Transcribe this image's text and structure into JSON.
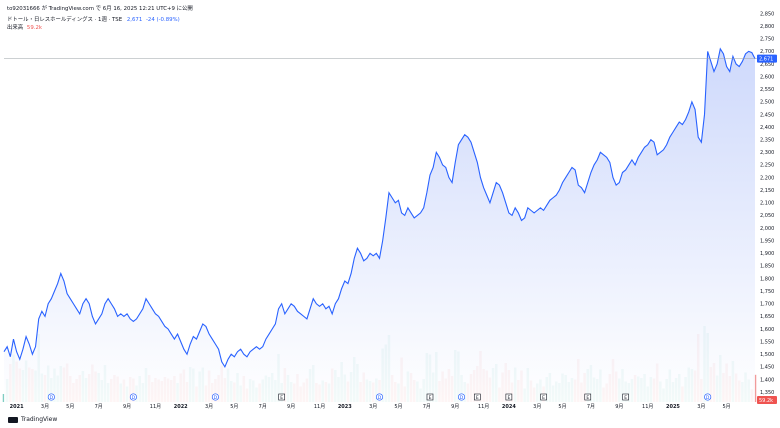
{
  "header": {
    "author_line": "to92031666 が TradingView.com で 6月 16, 2025 12:21 UTC+9 に公開",
    "symbol": "ドトール・日レスホールディングス · 1週 · TSE",
    "last_price": "2,671",
    "change": "-24 (-0.89%)",
    "volume_label": "出来高",
    "volume_value": "59.2k"
  },
  "price_badge": "2,671",
  "volume_badge": "59.2k",
  "footer": {
    "brand": "TradingView"
  },
  "colors": {
    "line": "#2962ff",
    "area_top": "#c9d5fb",
    "area_bottom": "#ffffff",
    "up_volume": "#7fcdc2",
    "down_volume": "#f19b9b",
    "badge": "#2962ff",
    "vol_badge": "#ef5350"
  },
  "chart_data": {
    "type": "area",
    "y_ticks": [
      "2,850",
      "2,800",
      "2,750",
      "2,700",
      "2,650",
      "2,600",
      "2,550",
      "2,500",
      "2,450",
      "2,400",
      "2,350",
      "2,300",
      "2,250",
      "2,200",
      "2,150",
      "2,100",
      "2,050",
      "2,000",
      "1,950",
      "1,900",
      "1,850",
      "1,800",
      "1,750",
      "1,700",
      "1,650",
      "1,600",
      "1,550",
      "1,500",
      "1,450",
      "1,400",
      "1,350"
    ],
    "ylim": [
      1340,
      2860
    ],
    "x_ticks": [
      {
        "label": "2021",
        "week": 4,
        "bold": true
      },
      {
        "label": "3月",
        "week": 13
      },
      {
        "label": "5月",
        "week": 21
      },
      {
        "label": "7月",
        "week": 30
      },
      {
        "label": "9月",
        "week": 39
      },
      {
        "label": "11月",
        "week": 48
      },
      {
        "label": "2022",
        "week": 56,
        "bold": true
      },
      {
        "label": "3月",
        "week": 65
      },
      {
        "label": "5月",
        "week": 73
      },
      {
        "label": "7月",
        "week": 82
      },
      {
        "label": "9月",
        "week": 91
      },
      {
        "label": "11月",
        "week": 100
      },
      {
        "label": "2023",
        "week": 108,
        "bold": true
      },
      {
        "label": "3月",
        "week": 117
      },
      {
        "label": "5月",
        "week": 125
      },
      {
        "label": "7月",
        "week": 134
      },
      {
        "label": "9月",
        "week": 143
      },
      {
        "label": "11月",
        "week": 152
      },
      {
        "label": "2024",
        "week": 160,
        "bold": true
      },
      {
        "label": "3月",
        "week": 169
      },
      {
        "label": "5月",
        "week": 177
      },
      {
        "label": "7月",
        "week": 186
      },
      {
        "label": "9月",
        "week": 195
      },
      {
        "label": "11月",
        "week": 204
      },
      {
        "label": "2025",
        "week": 212,
        "bold": true
      },
      {
        "label": "3月",
        "week": 221
      },
      {
        "label": "5月",
        "week": 229
      }
    ],
    "events": [
      {
        "type": "D",
        "week": 15
      },
      {
        "type": "D",
        "week": 41
      },
      {
        "type": "D",
        "week": 67
      },
      {
        "type": "E",
        "week": 88
      },
      {
        "type": "D",
        "week": 119
      },
      {
        "type": "E",
        "week": 135
      },
      {
        "type": "D",
        "week": 145
      },
      {
        "type": "E",
        "week": 150
      },
      {
        "type": "E",
        "week": 160
      },
      {
        "type": "E",
        "week": 171
      },
      {
        "type": "E",
        "week": 185
      },
      {
        "type": "E",
        "week": 197
      },
      {
        "type": "D",
        "week": 223
      }
    ],
    "price": [
      1510,
      1530,
      1490,
      1560,
      1510,
      1480,
      1520,
      1570,
      1540,
      1500,
      1530,
      1640,
      1670,
      1650,
      1700,
      1720,
      1750,
      1780,
      1820,
      1790,
      1740,
      1720,
      1700,
      1680,
      1660,
      1700,
      1720,
      1700,
      1650,
      1620,
      1640,
      1660,
      1700,
      1720,
      1700,
      1680,
      1650,
      1660,
      1650,
      1660,
      1640,
      1630,
      1640,
      1660,
      1680,
      1720,
      1700,
      1680,
      1660,
      1650,
      1630,
      1610,
      1600,
      1580,
      1560,
      1580,
      1550,
      1520,
      1500,
      1540,
      1570,
      1560,
      1590,
      1620,
      1610,
      1580,
      1560,
      1540,
      1520,
      1470,
      1450,
      1480,
      1500,
      1490,
      1510,
      1520,
      1500,
      1490,
      1510,
      1520,
      1530,
      1520,
      1530,
      1560,
      1580,
      1600,
      1620,
      1680,
      1700,
      1660,
      1680,
      1700,
      1690,
      1670,
      1660,
      1650,
      1640,
      1680,
      1720,
      1700,
      1690,
      1700,
      1680,
      1690,
      1660,
      1700,
      1720,
      1760,
      1790,
      1780,
      1820,
      1880,
      1920,
      1900,
      1870,
      1880,
      1900,
      1890,
      1900,
      1880,
      1950,
      2040,
      2140,
      2120,
      2100,
      2110,
      2060,
      2050,
      2080,
      2060,
      2040,
      2050,
      2060,
      2080,
      2140,
      2210,
      2240,
      2300,
      2280,
      2250,
      2240,
      2200,
      2180,
      2260,
      2330,
      2350,
      2370,
      2360,
      2340,
      2300,
      2260,
      2200,
      2160,
      2130,
      2100,
      2140,
      2180,
      2170,
      2140,
      2100,
      2060,
      2050,
      2080,
      2060,
      2030,
      2040,
      2080,
      2070,
      2060,
      2070,
      2080,
      2070,
      2090,
      2110,
      2120,
      2130,
      2150,
      2180,
      2200,
      2220,
      2240,
      2230,
      2170,
      2160,
      2140,
      2180,
      2220,
      2250,
      2270,
      2300,
      2290,
      2280,
      2260,
      2200,
      2170,
      2180,
      2220,
      2230,
      2250,
      2270,
      2250,
      2280,
      2300,
      2320,
      2330,
      2350,
      2340,
      2290,
      2300,
      2310,
      2330,
      2360,
      2380,
      2400,
      2420,
      2410,
      2430,
      2460,
      2500,
      2470,
      2360,
      2340,
      2450,
      2700,
      2660,
      2620,
      2650,
      2710,
      2690,
      2640,
      2620,
      2680,
      2650,
      2640,
      2660,
      2690,
      2700,
      2695,
      2671
    ],
    "volume_note": "weekly bars, colored by week direction"
  }
}
